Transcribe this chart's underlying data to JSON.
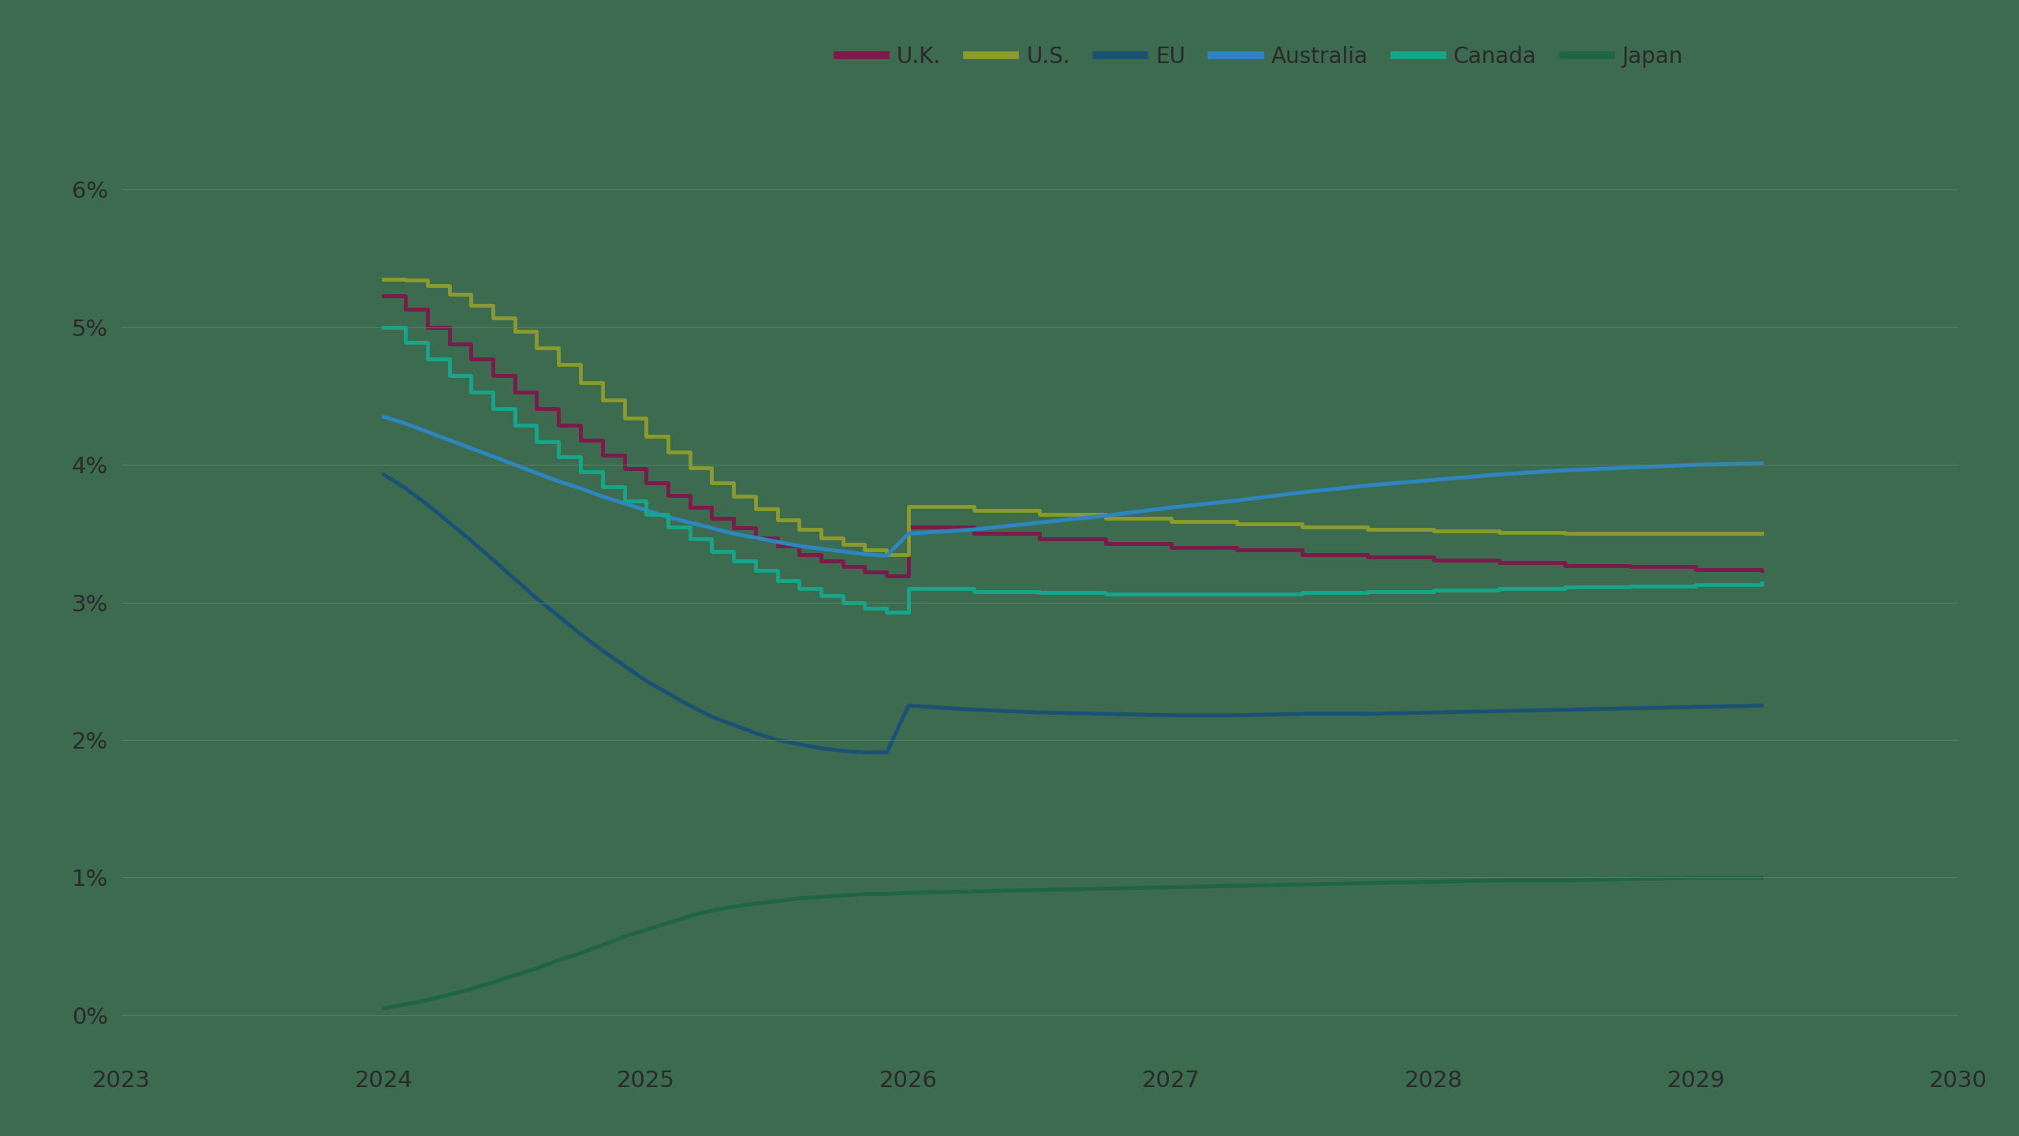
{
  "background_color": "#3d6b50",
  "grid_color": "#5a8a68",
  "label_color": "#2a2a2a",
  "legend_font_size": 20,
  "tick_font_size": 21,
  "xlim": [
    2023.0,
    2030.0
  ],
  "ylim": [
    -0.003,
    0.068
  ],
  "yticks": [
    0.0,
    0.01,
    0.02,
    0.03,
    0.04,
    0.05,
    0.06
  ],
  "xticks": [
    2023,
    2024,
    2025,
    2026,
    2027,
    2028,
    2029,
    2030
  ],
  "series": {
    "U.K.": {
      "color": "#7b1a4b",
      "linewidth": 3.5,
      "stepped": true,
      "data_x": [
        2024.0,
        2024.083,
        2024.167,
        2024.25,
        2024.333,
        2024.417,
        2024.5,
        2024.583,
        2024.667,
        2024.75,
        2024.833,
        2024.917,
        2025.0,
        2025.083,
        2025.167,
        2025.25,
        2025.333,
        2025.417,
        2025.5,
        2025.583,
        2025.667,
        2025.75,
        2025.833,
        2025.917,
        2026.0,
        2026.25,
        2026.5,
        2026.75,
        2027.0,
        2027.25,
        2027.5,
        2027.75,
        2028.0,
        2028.25,
        2028.5,
        2028.75,
        2029.0,
        2029.25
      ],
      "data_y": [
        0.0523,
        0.0513,
        0.05,
        0.0488,
        0.0477,
        0.0465,
        0.0453,
        0.0441,
        0.0429,
        0.0418,
        0.0407,
        0.0397,
        0.0387,
        0.0378,
        0.0369,
        0.0361,
        0.0354,
        0.0347,
        0.0341,
        0.0335,
        0.033,
        0.0326,
        0.0322,
        0.0319,
        0.0355,
        0.035,
        0.0346,
        0.0343,
        0.034,
        0.0338,
        0.0335,
        0.0333,
        0.0331,
        0.0329,
        0.0327,
        0.0326,
        0.0324,
        0.0323
      ]
    },
    "U.S.": {
      "color": "#8b9a2d",
      "linewidth": 3.5,
      "stepped": true,
      "data_x": [
        2024.0,
        2024.083,
        2024.167,
        2024.25,
        2024.333,
        2024.417,
        2024.5,
        2024.583,
        2024.667,
        2024.75,
        2024.833,
        2024.917,
        2025.0,
        2025.083,
        2025.167,
        2025.25,
        2025.333,
        2025.417,
        2025.5,
        2025.583,
        2025.667,
        2025.75,
        2025.833,
        2025.917,
        2026.0,
        2026.25,
        2026.5,
        2026.75,
        2027.0,
        2027.25,
        2027.5,
        2027.75,
        2028.0,
        2028.25,
        2028.5,
        2028.75,
        2029.0,
        2029.25
      ],
      "data_y": [
        0.0535,
        0.0534,
        0.053,
        0.0524,
        0.0516,
        0.0507,
        0.0497,
        0.0485,
        0.0473,
        0.046,
        0.0447,
        0.0434,
        0.0421,
        0.0409,
        0.0398,
        0.0387,
        0.0377,
        0.0368,
        0.036,
        0.0353,
        0.0347,
        0.0342,
        0.0338,
        0.0335,
        0.037,
        0.0367,
        0.0364,
        0.0361,
        0.0359,
        0.0357,
        0.0355,
        0.0353,
        0.0352,
        0.0351,
        0.035,
        0.035,
        0.035,
        0.035
      ]
    },
    "EU": {
      "color": "#1a5276",
      "linewidth": 3.5,
      "stepped": false,
      "data_x": [
        2024.0,
        2024.083,
        2024.167,
        2024.25,
        2024.333,
        2024.417,
        2024.5,
        2024.583,
        2024.667,
        2024.75,
        2024.833,
        2024.917,
        2025.0,
        2025.083,
        2025.167,
        2025.25,
        2025.333,
        2025.417,
        2025.5,
        2025.583,
        2025.667,
        2025.75,
        2025.833,
        2025.917,
        2026.0,
        2026.25,
        2026.5,
        2026.75,
        2027.0,
        2027.25,
        2027.5,
        2027.75,
        2028.0,
        2028.25,
        2028.5,
        2028.75,
        2029.0,
        2029.25
      ],
      "data_y": [
        0.0393,
        0.0383,
        0.0371,
        0.0358,
        0.0345,
        0.0331,
        0.0317,
        0.0303,
        0.029,
        0.0277,
        0.0265,
        0.0254,
        0.0243,
        0.0234,
        0.0225,
        0.0217,
        0.0211,
        0.0205,
        0.02,
        0.0197,
        0.0194,
        0.0192,
        0.0191,
        0.0191,
        0.0225,
        0.0222,
        0.022,
        0.0219,
        0.0218,
        0.0218,
        0.0219,
        0.0219,
        0.022,
        0.0221,
        0.0222,
        0.0223,
        0.0224,
        0.0225
      ]
    },
    "Australia": {
      "color": "#2e86c1",
      "linewidth": 3.5,
      "stepped": false,
      "data_x": [
        2024.0,
        2024.083,
        2024.167,
        2024.25,
        2024.333,
        2024.417,
        2024.5,
        2024.583,
        2024.667,
        2024.75,
        2024.833,
        2024.917,
        2025.0,
        2025.083,
        2025.167,
        2025.25,
        2025.333,
        2025.417,
        2025.5,
        2025.583,
        2025.667,
        2025.75,
        2025.833,
        2025.917,
        2026.0,
        2026.25,
        2026.5,
        2026.75,
        2027.0,
        2027.25,
        2027.5,
        2027.75,
        2028.0,
        2028.25,
        2028.5,
        2028.75,
        2029.0,
        2029.25
      ],
      "data_y": [
        0.0435,
        0.043,
        0.0424,
        0.0418,
        0.0412,
        0.0406,
        0.04,
        0.0394,
        0.0388,
        0.0383,
        0.0377,
        0.0372,
        0.0367,
        0.0362,
        0.0358,
        0.0354,
        0.035,
        0.0347,
        0.0344,
        0.0341,
        0.0339,
        0.0337,
        0.0335,
        0.0334,
        0.035,
        0.0353,
        0.0358,
        0.0363,
        0.0369,
        0.0374,
        0.038,
        0.0385,
        0.0389,
        0.0393,
        0.0396,
        0.0398,
        0.04,
        0.0401
      ]
    },
    "Canada": {
      "color": "#17a589",
      "linewidth": 3.5,
      "stepped": true,
      "data_x": [
        2024.0,
        2024.083,
        2024.167,
        2024.25,
        2024.333,
        2024.417,
        2024.5,
        2024.583,
        2024.667,
        2024.75,
        2024.833,
        2024.917,
        2025.0,
        2025.083,
        2025.167,
        2025.25,
        2025.333,
        2025.417,
        2025.5,
        2025.583,
        2025.667,
        2025.75,
        2025.833,
        2025.917,
        2026.0,
        2026.25,
        2026.5,
        2026.75,
        2027.0,
        2027.25,
        2027.5,
        2027.75,
        2028.0,
        2028.25,
        2028.5,
        2028.75,
        2029.0,
        2029.25
      ],
      "data_y": [
        0.05,
        0.0489,
        0.0477,
        0.0465,
        0.0453,
        0.0441,
        0.0429,
        0.0417,
        0.0406,
        0.0395,
        0.0384,
        0.0374,
        0.0364,
        0.0355,
        0.0346,
        0.0337,
        0.033,
        0.0323,
        0.0316,
        0.031,
        0.0305,
        0.03,
        0.0296,
        0.0293,
        0.031,
        0.0308,
        0.0307,
        0.0306,
        0.0306,
        0.0306,
        0.0307,
        0.0308,
        0.0309,
        0.031,
        0.0311,
        0.0312,
        0.0313,
        0.0314
      ]
    },
    "Japan": {
      "color": "#1e6641",
      "linewidth": 3.5,
      "stepped": false,
      "data_x": [
        2024.0,
        2024.083,
        2024.167,
        2024.25,
        2024.333,
        2024.417,
        2024.5,
        2024.583,
        2024.667,
        2024.75,
        2024.833,
        2024.917,
        2025.0,
        2025.083,
        2025.167,
        2025.25,
        2025.333,
        2025.417,
        2025.5,
        2025.583,
        2025.667,
        2025.75,
        2025.833,
        2025.917,
        2026.0,
        2026.25,
        2026.5,
        2026.75,
        2027.0,
        2027.25,
        2027.5,
        2027.75,
        2028.0,
        2028.25,
        2028.5,
        2028.75,
        2029.0,
        2029.25
      ],
      "data_y": [
        0.0005,
        0.0008,
        0.0011,
        0.0015,
        0.0019,
        0.0024,
        0.0029,
        0.0034,
        0.004,
        0.0045,
        0.0051,
        0.0057,
        0.0062,
        0.0067,
        0.0072,
        0.0076,
        0.0079,
        0.0081,
        0.0083,
        0.0085,
        0.0086,
        0.0087,
        0.0088,
        0.0088,
        0.0089,
        0.009,
        0.0091,
        0.0092,
        0.0093,
        0.0094,
        0.0095,
        0.0096,
        0.0097,
        0.0098,
        0.0098,
        0.0099,
        0.01,
        0.01
      ]
    }
  },
  "legend_order": [
    "U.K.",
    "U.S.",
    "EU",
    "Australia",
    "Canada",
    "Japan"
  ]
}
